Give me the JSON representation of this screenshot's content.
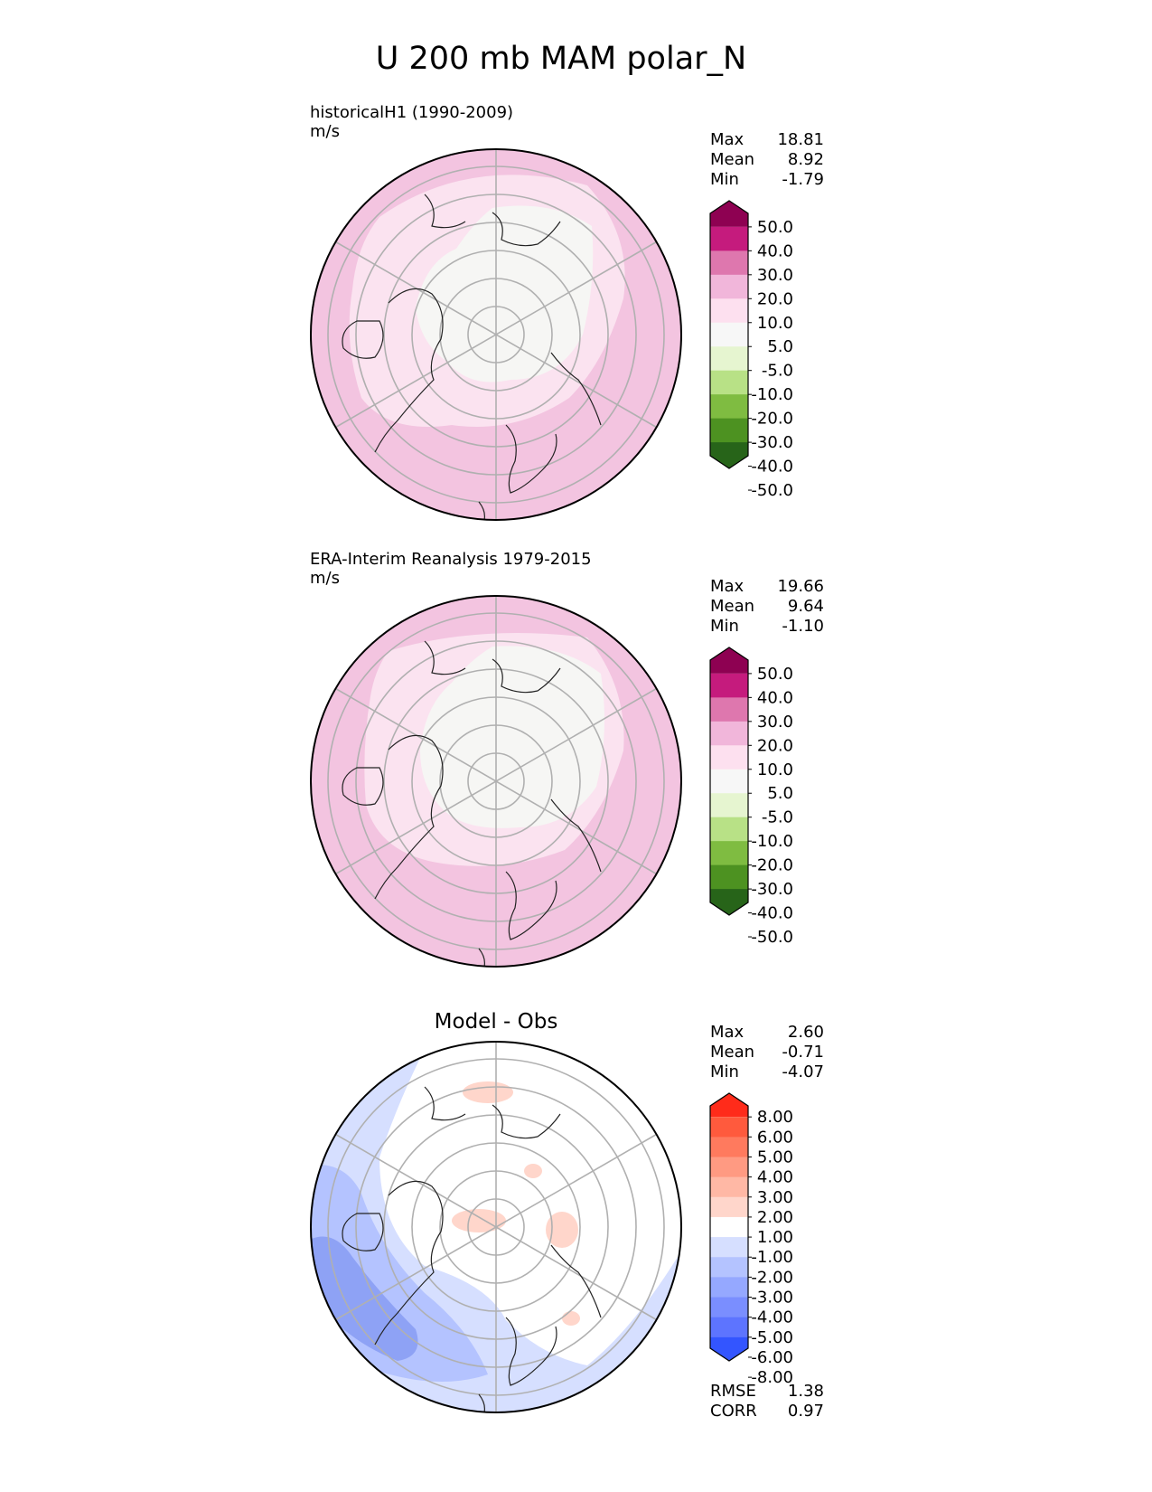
{
  "title": "U 200 mb MAM polar_N",
  "chart_data": [
    {
      "type": "heatmap",
      "projection": "north-polar-stereographic",
      "subtitle": "historicalH1 (1990-2009)",
      "units": "m/s",
      "stats": [
        {
          "label": "Max",
          "value": "18.81"
        },
        {
          "label": "Mean",
          "value": "8.92"
        },
        {
          "label": "Min",
          "value": "-1.79"
        }
      ],
      "colorbar": {
        "extend": "both",
        "levels": [
          "50.0",
          "40.0",
          "30.0",
          "20.0",
          "10.0",
          "5.0",
          "-5.0",
          "-10.0",
          "-20.0",
          "-30.0",
          "-40.0",
          "-50.0"
        ],
        "colors": [
          "#8e0152",
          "#c51b7d",
          "#de77ae",
          "#f1b6da",
          "#fde0ef",
          "#f7f7f7",
          "#e6f5d0",
          "#b8e186",
          "#7fbc41",
          "#4d9221",
          "#276419"
        ]
      }
    },
    {
      "type": "heatmap",
      "projection": "north-polar-stereographic",
      "subtitle": "ERA-Interim Reanalysis 1979-2015",
      "units": "m/s",
      "stats": [
        {
          "label": "Max",
          "value": "19.66"
        },
        {
          "label": "Mean",
          "value": "9.64"
        },
        {
          "label": "Min",
          "value": "-1.10"
        }
      ],
      "colorbar": {
        "extend": "both",
        "levels": [
          "50.0",
          "40.0",
          "30.0",
          "20.0",
          "10.0",
          "5.0",
          "-5.0",
          "-10.0",
          "-20.0",
          "-30.0",
          "-40.0",
          "-50.0"
        ],
        "colors": [
          "#8e0152",
          "#c51b7d",
          "#de77ae",
          "#f1b6da",
          "#fde0ef",
          "#f7f7f7",
          "#e6f5d0",
          "#b8e186",
          "#7fbc41",
          "#4d9221",
          "#276419"
        ]
      }
    },
    {
      "type": "heatmap",
      "projection": "north-polar-stereographic",
      "subtitle": "Model - Obs",
      "units": "",
      "stats": [
        {
          "label": "Max",
          "value": "2.60"
        },
        {
          "label": "Mean",
          "value": "-0.71"
        },
        {
          "label": "Min",
          "value": "-4.07"
        }
      ],
      "colorbar": {
        "extend": "both",
        "levels": [
          "8.00",
          "6.00",
          "5.00",
          "4.00",
          "3.00",
          "2.00",
          "1.00",
          "-1.00",
          "-2.00",
          "-3.00",
          "-4.00",
          "-5.00",
          "-6.00",
          "-8.00"
        ],
        "colors": [
          "#ff2b1a",
          "#ff5a3d",
          "#ff7a5e",
          "#ff9a82",
          "#ffb8a5",
          "#ffd6cb",
          "#ffffff",
          "#d6dfff",
          "#b4c3ff",
          "#95a8ff",
          "#7a8eff",
          "#5d74ff",
          "#3355ff"
        ]
      },
      "metrics": [
        {
          "label": "RMSE",
          "value": "1.38"
        },
        {
          "label": "CORR",
          "value": "0.97"
        }
      ]
    }
  ],
  "colors": {
    "panel1_top": "#ff2b1a",
    "panel1_pink_outer": "#f3c4e0",
    "panel1_pink_inner": "#fbe3f0",
    "panel1_core": "#f6f6f4",
    "diff_blue_light": "#d6dfff",
    "diff_blue_mid": "#b4c3ff",
    "diff_blue_dark": "#8ea2f5",
    "diff_red_light": "#ffd6cb",
    "graticule": "#b0b0b0",
    "coast": "#222222"
  }
}
